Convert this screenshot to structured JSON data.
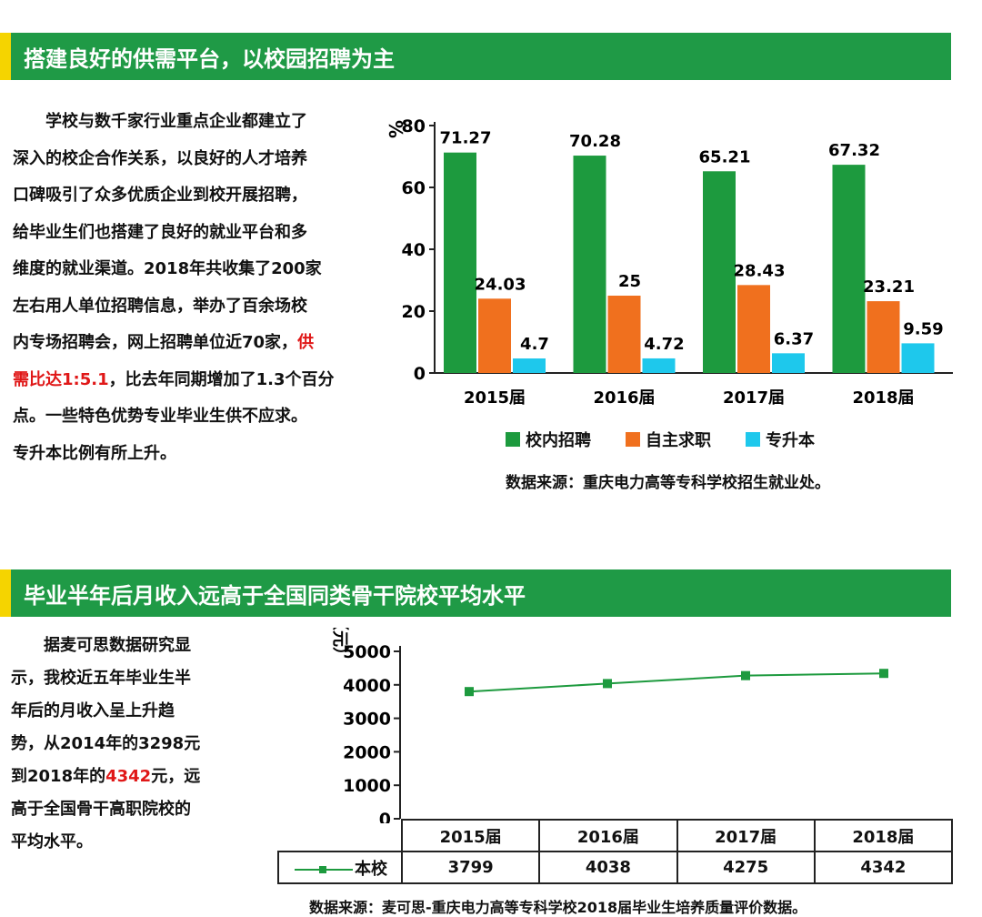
{
  "section1": {
    "title": "搭建良好的供需平台，以校园招聘为主",
    "text_lines": [
      "　　学校与数千家行业重点企业都建立了",
      "深入的校企合作关系，以良好的人才培养",
      "口碑吸引了众多优质企业到校开展招聘，",
      "给毕业生们也搭建了良好的就业平台和多",
      "维度的就业渠道。2018年共收集了200家",
      "左右用人单位招聘信息，举办了百余场校",
      "内专场招聘会，网上招聘单位近70家，"
    ],
    "highlight_a": "供",
    "highlight_b": "需比达1:5.1",
    "text_cont": "，比去年同期增加了1.3个百分",
    "text_tail": [
      "点。一些特色优势专业毕业生供不应求。",
      "专升本比例有所上升。"
    ],
    "source": "数据来源：重庆电力高等专科学校招生就业处。"
  },
  "section2": {
    "title": "毕业半年后月收入远高于全国同类骨干院校平均水平",
    "text_lines": [
      "　　据麦可思数据研究显",
      "示，我校近五年毕业生半",
      "年后的月收入呈上升趋",
      "势，从2014年的3298元"
    ],
    "text_pre": "到2018年的",
    "text_hl": "4342",
    "text_post": "元，远",
    "text_tail": [
      "高于全国骨干高职院校的",
      "平均水平。"
    ],
    "source": "数据来源：麦可思-重庆电力高等专科学校2018届毕业生培养质量评价数据。"
  },
  "colors": {
    "header": "#1f9a46",
    "accent": "#f5d400",
    "highlight": "#e01818"
  },
  "chart_data": [
    {
      "type": "bar",
      "ylabel": "%",
      "ylim": [
        0,
        80
      ],
      "yticks": [
        0,
        20,
        40,
        60,
        80
      ],
      "categories": [
        "2015届",
        "2016届",
        "2017届",
        "2018届"
      ],
      "series": [
        {
          "name": "校内招聘",
          "color": "#1d9a3e",
          "values": [
            71.27,
            70.28,
            65.21,
            67.32
          ],
          "labels": [
            "71.27",
            "70.28",
            "65.21",
            "67.32"
          ]
        },
        {
          "name": "自主求职",
          "color": "#f0701e",
          "values": [
            24.03,
            25,
            28.43,
            23.21
          ],
          "labels": [
            "24.03",
            "25",
            "28.43",
            "23.21"
          ]
        },
        {
          "name": "专升本",
          "color": "#1ec8ec",
          "values": [
            4.7,
            4.72,
            6.37,
            9.59
          ],
          "labels": [
            "4.7",
            "4.72",
            "6.37",
            "9.59"
          ]
        }
      ]
    },
    {
      "type": "line",
      "ylabel": "（元）",
      "ylim": [
        0,
        5000
      ],
      "yticks": [
        0,
        1000,
        2000,
        3000,
        4000,
        5000
      ],
      "categories": [
        "2015届",
        "2016届",
        "2017届",
        "2018届"
      ],
      "series": [
        {
          "name": "本校",
          "color": "#1d9a3e",
          "values": [
            3799,
            4038,
            4275,
            4342
          ],
          "labels": [
            "3799",
            "4038",
            "4275",
            "4342"
          ]
        }
      ]
    }
  ]
}
